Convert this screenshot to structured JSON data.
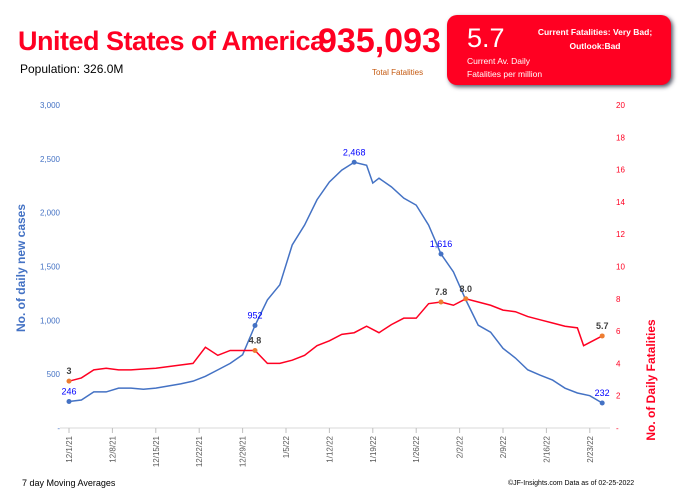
{
  "header": {
    "country": "United States of America",
    "total_fatalities": "935,093",
    "total_fatalities_label": "Total Fatalities",
    "population": "Population: 326.0M"
  },
  "status_box": {
    "value": "5.7",
    "label_line1": "Current Av. Daily",
    "label_line2": "Fatalities per million",
    "status_line1": "Current Fatalities: Very Bad;",
    "status_line2": "Outlook:Bad",
    "color": "#ff0022"
  },
  "footer": {
    "left": "7 day Moving Averages",
    "right": "©JF-Insights.com  Data as of 02-25-2022"
  },
  "chart_data": {
    "type": "line",
    "xlabel": "",
    "ylabel_left": "No. of daily new  cases",
    "ylabel_right": "No. of Daily Fatalities",
    "ylim_left": [
      0,
      3000
    ],
    "ylim_right": [
      0,
      20
    ],
    "yticks_left": [
      "-",
      "500",
      "1,000",
      "1,500",
      "2,000",
      "2,500",
      "3,000"
    ],
    "yticks_right": [
      "-",
      "2",
      "4",
      "6",
      "8",
      "10",
      "12",
      "14",
      "16",
      "18",
      "20"
    ],
    "xticks": [
      "12/1/21",
      "12/8/21",
      "12/15/21",
      "12/22/21",
      "12/29/21",
      "1/5/22",
      "1/12/22",
      "1/19/22",
      "1/26/22",
      "2/2/22",
      "2/9/22",
      "2/16/22",
      "2/23/22"
    ],
    "grid": false,
    "series": [
      {
        "axis": "left",
        "color": "#4472c4",
        "points": [
          [
            "12/1/21",
            246
          ],
          [
            "12/3/21",
            260
          ],
          [
            "12/5/21",
            335
          ],
          [
            "12/7/21",
            335
          ],
          [
            "12/9/21",
            370
          ],
          [
            "12/11/21",
            370
          ],
          [
            "12/13/21",
            360
          ],
          [
            "12/15/21",
            370
          ],
          [
            "12/17/21",
            390
          ],
          [
            "12/19/21",
            410
          ],
          [
            "12/21/21",
            435
          ],
          [
            "12/23/21",
            480
          ],
          [
            "12/25/21",
            540
          ],
          [
            "12/27/21",
            600
          ],
          [
            "12/29/21",
            680
          ],
          [
            "12/31/21",
            952
          ],
          [
            "1/2/22",
            1190
          ],
          [
            "1/4/22",
            1330
          ],
          [
            "1/6/22",
            1700
          ],
          [
            "1/8/22",
            1885
          ],
          [
            "1/10/22",
            2120
          ],
          [
            "1/12/22",
            2285
          ],
          [
            "1/14/22",
            2395
          ],
          [
            "1/16/22",
            2468
          ],
          [
            "1/18/22",
            2440
          ],
          [
            "1/19/22",
            2275
          ],
          [
            "1/20/22",
            2320
          ],
          [
            "1/22/22",
            2240
          ],
          [
            "1/24/22",
            2135
          ],
          [
            "1/26/22",
            2070
          ],
          [
            "1/28/22",
            1885
          ],
          [
            "1/30/22",
            1616
          ],
          [
            "2/1/22",
            1450
          ],
          [
            "2/3/22",
            1190
          ],
          [
            "2/5/22",
            955
          ],
          [
            "2/7/22",
            890
          ],
          [
            "2/9/22",
            740
          ],
          [
            "2/11/22",
            650
          ],
          [
            "2/13/22",
            540
          ],
          [
            "2/15/22",
            490
          ],
          [
            "2/17/22",
            445
          ],
          [
            "2/19/22",
            370
          ],
          [
            "2/21/22",
            325
          ],
          [
            "2/23/22",
            300
          ],
          [
            "2/25/22",
            232
          ]
        ],
        "annotations": [
          [
            "12/1/21",
            "246"
          ],
          [
            "12/31/21",
            "952"
          ],
          [
            "1/16/22",
            "2,468"
          ],
          [
            "1/30/22",
            "1,616"
          ],
          [
            "2/25/22",
            "232"
          ]
        ]
      },
      {
        "axis": "right",
        "color": "#ff0022",
        "points": [
          [
            "12/1/21",
            2.9
          ],
          [
            "12/3/21",
            3.1
          ],
          [
            "12/5/21",
            3.6
          ],
          [
            "12/7/21",
            3.7
          ],
          [
            "12/9/21",
            3.6
          ],
          [
            "12/11/21",
            3.6
          ],
          [
            "12/13/21",
            3.65
          ],
          [
            "12/15/21",
            3.7
          ],
          [
            "12/17/21",
            3.8
          ],
          [
            "12/19/21",
            3.9
          ],
          [
            "12/21/21",
            4.0
          ],
          [
            "12/23/21",
            5.0
          ],
          [
            "12/25/21",
            4.5
          ],
          [
            "12/27/21",
            4.8
          ],
          [
            "12/29/21",
            4.8
          ],
          [
            "12/31/21",
            4.8
          ],
          [
            "1/2/22",
            4.0
          ],
          [
            "1/4/22",
            4.0
          ],
          [
            "1/6/22",
            4.2
          ],
          [
            "1/8/22",
            4.5
          ],
          [
            "1/10/22",
            5.1
          ],
          [
            "1/12/22",
            5.4
          ],
          [
            "1/14/22",
            5.8
          ],
          [
            "1/16/22",
            5.9
          ],
          [
            "1/18/22",
            6.3
          ],
          [
            "1/20/22",
            5.9
          ],
          [
            "1/22/22",
            6.4
          ],
          [
            "1/24/22",
            6.8
          ],
          [
            "1/26/22",
            6.8
          ],
          [
            "1/28/22",
            7.7
          ],
          [
            "1/30/22",
            7.8
          ],
          [
            "2/1/22",
            7.6
          ],
          [
            "2/3/22",
            8.0
          ],
          [
            "2/5/22",
            7.8
          ],
          [
            "2/7/22",
            7.6
          ],
          [
            "2/9/22",
            7.3
          ],
          [
            "2/11/22",
            7.2
          ],
          [
            "2/13/22",
            6.9
          ],
          [
            "2/15/22",
            6.7
          ],
          [
            "2/17/22",
            6.5
          ],
          [
            "2/19/22",
            6.3
          ],
          [
            "2/21/22",
            6.2
          ],
          [
            "2/22/22",
            5.1
          ],
          [
            "2/23/22",
            5.3
          ],
          [
            "2/25/22",
            5.7
          ]
        ],
        "annotations": [
          [
            "12/1/21",
            "3"
          ],
          [
            "12/31/21",
            "4.8"
          ],
          [
            "1/30/22",
            "7.8"
          ],
          [
            "2/3/22",
            "8.0"
          ],
          [
            "2/25/22",
            "5.7"
          ]
        ]
      }
    ]
  }
}
